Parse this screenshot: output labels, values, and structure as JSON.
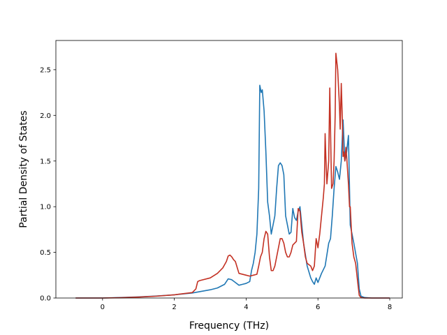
{
  "chart_data": {
    "type": "line",
    "title": "",
    "xlabel": "Frequency (THz)",
    "ylabel": "Partial Density of States",
    "xlim": [
      -1.3,
      8.35
    ],
    "ylim": [
      0,
      2.82
    ],
    "xticks": [
      0,
      2,
      4,
      6,
      8
    ],
    "xtick_labels": [
      "0",
      "2",
      "4",
      "6",
      "8"
    ],
    "yticks": [
      0.0,
      0.5,
      1.0,
      1.5,
      2.0,
      2.5
    ],
    "ytick_labels": [
      "0.0",
      "0.5",
      "1.0",
      "1.5",
      "2.0",
      "2.5"
    ],
    "grid": false,
    "legend": "none",
    "series": [
      {
        "color": "#1f77b4",
        "x": [
          -0.75,
          0,
          0.5,
          1.0,
          1.5,
          2.0,
          2.5,
          3.0,
          3.2,
          3.4,
          3.5,
          3.6,
          3.7,
          3.8,
          3.9,
          4.0,
          4.1,
          4.15,
          4.2,
          4.25,
          4.3,
          4.35,
          4.38,
          4.42,
          4.45,
          4.5,
          4.55,
          4.6,
          4.65,
          4.7,
          4.8,
          4.85,
          4.9,
          4.95,
          5.0,
          5.05,
          5.1,
          5.15,
          5.2,
          5.25,
          5.3,
          5.35,
          5.4,
          5.45,
          5.5,
          5.6,
          5.7,
          5.8,
          5.85,
          5.9,
          5.95,
          6.0,
          6.05,
          6.1,
          6.2,
          6.3,
          6.35,
          6.4,
          6.45,
          6.5,
          6.55,
          6.6,
          6.65,
          6.7,
          6.75,
          6.8,
          6.85,
          6.9,
          7.0,
          7.1,
          7.15,
          7.2,
          7.3,
          7.5,
          8.0
        ],
        "y": [
          0,
          0,
          0.005,
          0.012,
          0.022,
          0.035,
          0.055,
          0.09,
          0.11,
          0.15,
          0.21,
          0.2,
          0.17,
          0.14,
          0.15,
          0.16,
          0.18,
          0.3,
          0.38,
          0.5,
          0.7,
          1.2,
          2.33,
          2.25,
          2.28,
          2.05,
          1.6,
          1.05,
          0.9,
          0.7,
          0.9,
          1.2,
          1.45,
          1.48,
          1.45,
          1.35,
          0.9,
          0.8,
          0.7,
          0.72,
          0.98,
          0.88,
          0.85,
          0.95,
          1.0,
          0.6,
          0.35,
          0.22,
          0.18,
          0.15,
          0.22,
          0.17,
          0.22,
          0.27,
          0.35,
          0.6,
          0.65,
          0.9,
          1.2,
          1.44,
          1.38,
          1.3,
          1.5,
          1.95,
          1.5,
          1.6,
          1.78,
          0.8,
          0.6,
          0.38,
          0.1,
          0.02,
          0.005,
          0,
          0
        ]
      },
      {
        "color": "#c33022",
        "x": [
          -0.75,
          0,
          0.5,
          1.0,
          1.5,
          2.0,
          2.5,
          2.6,
          2.65,
          2.7,
          3.0,
          3.2,
          3.35,
          3.45,
          3.5,
          3.55,
          3.6,
          3.65,
          3.7,
          3.8,
          4.0,
          4.1,
          4.2,
          4.3,
          4.35,
          4.4,
          4.45,
          4.5,
          4.55,
          4.6,
          4.65,
          4.7,
          4.75,
          4.8,
          4.85,
          4.9,
          4.95,
          5.0,
          5.05,
          5.1,
          5.15,
          5.2,
          5.25,
          5.3,
          5.35,
          5.4,
          5.45,
          5.5,
          5.55,
          5.6,
          5.65,
          5.7,
          5.8,
          5.85,
          5.9,
          5.95,
          6.0,
          6.05,
          6.1,
          6.15,
          6.18,
          6.2,
          6.22,
          6.25,
          6.3,
          6.33,
          6.38,
          6.42,
          6.45,
          6.48,
          6.5,
          6.55,
          6.6,
          6.62,
          6.65,
          6.68,
          6.7,
          6.72,
          6.75,
          6.78,
          6.8,
          6.85,
          6.88,
          6.9,
          6.95,
          7.0,
          7.05,
          7.1,
          7.15,
          7.2,
          7.3,
          7.5,
          8.0
        ],
        "y": [
          0,
          0,
          0.003,
          0.01,
          0.02,
          0.035,
          0.06,
          0.1,
          0.18,
          0.19,
          0.22,
          0.27,
          0.33,
          0.4,
          0.46,
          0.47,
          0.45,
          0.42,
          0.4,
          0.27,
          0.25,
          0.24,
          0.25,
          0.26,
          0.35,
          0.45,
          0.5,
          0.65,
          0.73,
          0.7,
          0.45,
          0.3,
          0.3,
          0.35,
          0.45,
          0.55,
          0.65,
          0.65,
          0.6,
          0.5,
          0.45,
          0.45,
          0.5,
          0.58,
          0.6,
          0.62,
          0.98,
          0.95,
          0.72,
          0.6,
          0.45,
          0.38,
          0.35,
          0.3,
          0.35,
          0.65,
          0.55,
          0.7,
          0.9,
          1.1,
          1.25,
          1.8,
          1.55,
          1.25,
          1.5,
          2.3,
          1.2,
          1.25,
          1.5,
          2.0,
          2.68,
          2.5,
          2.1,
          1.85,
          2.35,
          1.95,
          1.55,
          1.6,
          1.5,
          1.65,
          1.55,
          1.25,
          1.0,
          1.0,
          0.6,
          0.45,
          0.38,
          0.2,
          0.03,
          0.005,
          0,
          0,
          0
        ]
      }
    ]
  }
}
